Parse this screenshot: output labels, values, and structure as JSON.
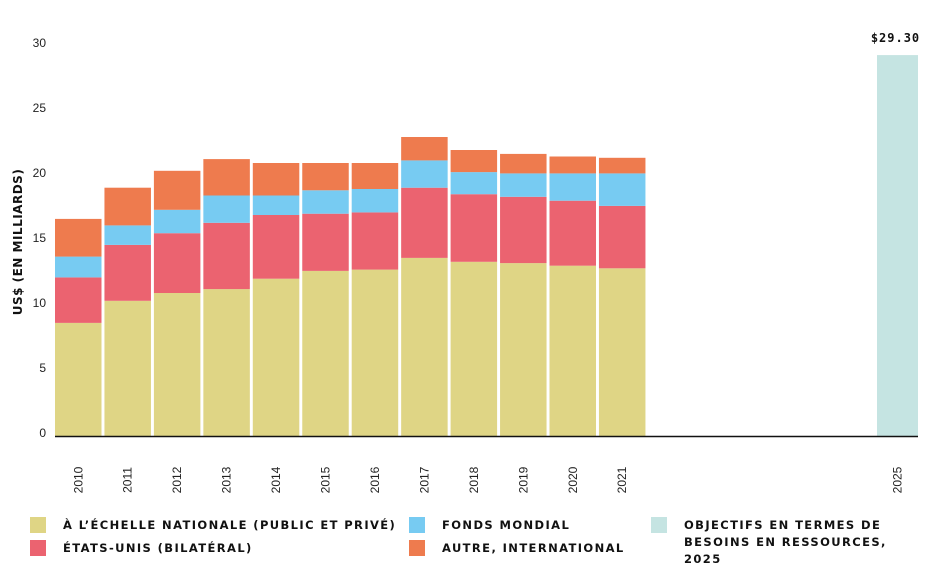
{
  "chart_data": {
    "type": "bar",
    "stacked": true,
    "title": "",
    "xlabel": "",
    "ylabel": "US$ (EN MILLIARDS)",
    "ylim": [
      0,
      30
    ],
    "yticks": [
      0,
      5,
      10,
      15,
      20,
      25,
      30
    ],
    "grid": false,
    "categories": [
      "2010",
      "2011",
      "2012",
      "2013",
      "2014",
      "2015",
      "2016",
      "2017",
      "2018",
      "2019",
      "2020",
      "2021"
    ],
    "series": [
      {
        "name": "À L’ÉCHELLE NATIONALE (PUBLIC ET PRIVÉ)",
        "color": "#DFD585",
        "values": [
          8.7,
          10.4,
          11.0,
          11.3,
          12.1,
          12.7,
          12.8,
          13.7,
          13.4,
          13.3,
          13.1,
          12.9
        ]
      },
      {
        "name": "ÉTATS-UNIS (BILATÉRAL)",
        "color": "#EB6370",
        "values": [
          3.5,
          4.3,
          4.6,
          5.1,
          4.9,
          4.4,
          4.4,
          5.4,
          5.2,
          5.1,
          5.0,
          4.8
        ]
      },
      {
        "name": "FONDS MONDIAL",
        "color": "#77CBF2",
        "values": [
          1.6,
          1.5,
          1.8,
          2.1,
          1.5,
          1.8,
          1.8,
          2.1,
          1.7,
          1.8,
          2.1,
          2.5
        ]
      },
      {
        "name": "AUTRE, INTERNATIONAL",
        "color": "#EE7B4E",
        "values": [
          2.9,
          2.9,
          3.0,
          2.8,
          2.5,
          2.1,
          2.0,
          1.8,
          1.7,
          1.5,
          1.3,
          1.2
        ]
      }
    ],
    "target": {
      "category": "2025",
      "name": "OBJECTIFS EN TERMES DE BESOINS EN RESSOURCES, 2025",
      "value": 29.3,
      "label": "$29.30",
      "color": "#C5E4E2"
    },
    "legend_position": "bottom"
  },
  "legend": {
    "items": [
      {
        "label": "À L’ÉCHELLE NATIONALE (PUBLIC ET PRIVÉ)",
        "color": "#DFD585"
      },
      {
        "label": "ÉTATS-UNIS (BILATÉRAL)",
        "color": "#EB6370"
      },
      {
        "label": "FONDS MONDIAL",
        "color": "#77CBF2"
      },
      {
        "label": "AUTRE, INTERNATIONAL",
        "color": "#EE7B4E"
      },
      {
        "label": "OBJECTIFS EN TERMES DE\nBESOINS EN RESSOURCES, 2025",
        "color": "#C5E4E2"
      }
    ]
  }
}
